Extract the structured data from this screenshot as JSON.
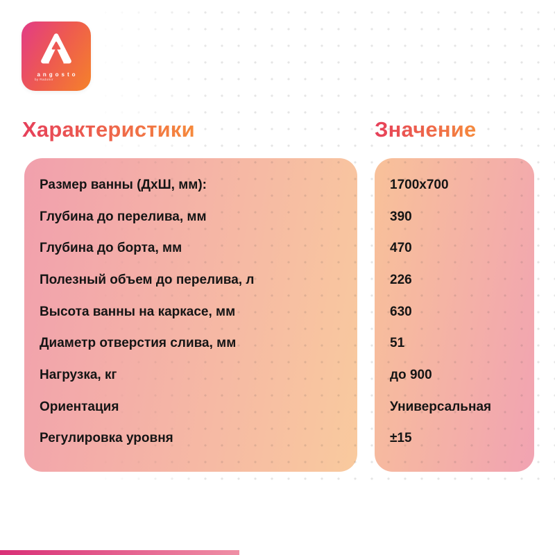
{
  "brand": {
    "logo_icon": "angosto-a-monogram",
    "logo_text": "angosto",
    "logo_subtext": "by Radomir"
  },
  "headers": {
    "characteristics": "Характеристики",
    "value": "Значение"
  },
  "table": {
    "rows": [
      {
        "label": "Размер ванны (ДхШ, мм):",
        "value": "1700x700"
      },
      {
        "label": "Глубина до перелива, мм",
        "value": "390"
      },
      {
        "label": "Глубина до борта, мм",
        "value": "470"
      },
      {
        "label": "Полезный объем до перелива, л",
        "value": "226"
      },
      {
        "label": "Высота ванны на каркасе, мм",
        "value": "630"
      },
      {
        "label": "Диаметр отверстия слива, мм",
        "value": "51"
      },
      {
        "label": "Нагрузка, кг",
        "value": "до 900"
      },
      {
        "label": "Ориентация",
        "value": "Универсальная"
      },
      {
        "label": "Регулировка уровня",
        "value": "±15"
      }
    ]
  },
  "colors": {
    "logo_gradient_start": "#e23b86",
    "logo_gradient_end": "#f5822a",
    "header_gradient_start": "#e63f5a",
    "header_gradient_end": "#f68a3c",
    "panel_left_gradient_start": "#f1a0ad",
    "panel_left_gradient_end": "#f9ca9e",
    "panel_right_gradient_start": "#f8c199",
    "panel_right_gradient_end": "#f1a3b2",
    "row_text": "#151515",
    "bottom_bar_start": "#d93077",
    "bottom_bar_end": "#ef8fa5"
  }
}
